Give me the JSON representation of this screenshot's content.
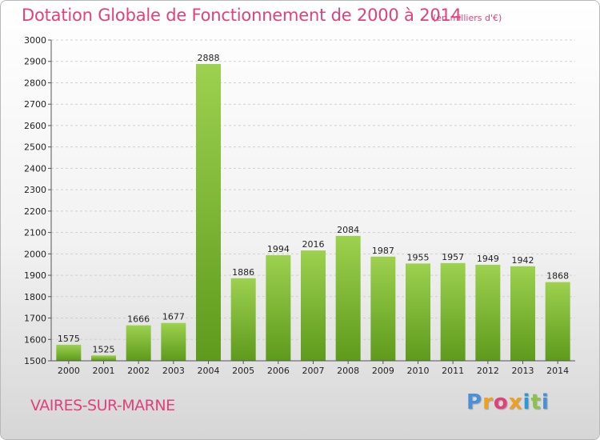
{
  "header": {
    "title": "Dotation Globale de Fonctionnement de 2000 à 2014",
    "subtitle": "(en milliers d'€)"
  },
  "footer": {
    "commune": "VAIRES-SUR-MARNE",
    "logo": [
      "P",
      "r",
      "o",
      "x",
      "i",
      "t",
      "i"
    ]
  },
  "colors": {
    "accent": "#e0417a",
    "bar_top": "#9dd14f",
    "bar_bottom": "#5e9a1c",
    "logo": [
      "#4a90d9",
      "#f0a020",
      "#e0417a",
      "#f0a020",
      "#2a9bd9",
      "#8bc34a",
      "#4a90d9"
    ]
  },
  "chart_data": {
    "type": "bar",
    "categories": [
      "2000",
      "2001",
      "2002",
      "2003",
      "2004",
      "2005",
      "2006",
      "2007",
      "2008",
      "2009",
      "2010",
      "2011",
      "2012",
      "2013",
      "2014"
    ],
    "values": [
      1575,
      1525,
      1666,
      1677,
      2888,
      1886,
      1994,
      2016,
      2084,
      1987,
      1955,
      1957,
      1949,
      1942,
      1868
    ],
    "ylim": [
      1500,
      3000
    ],
    "yticks": [
      1500,
      1600,
      1700,
      1800,
      1900,
      2000,
      2100,
      2200,
      2300,
      2400,
      2500,
      2600,
      2700,
      2800,
      2900,
      3000
    ],
    "grid": true,
    "legend": "none"
  }
}
